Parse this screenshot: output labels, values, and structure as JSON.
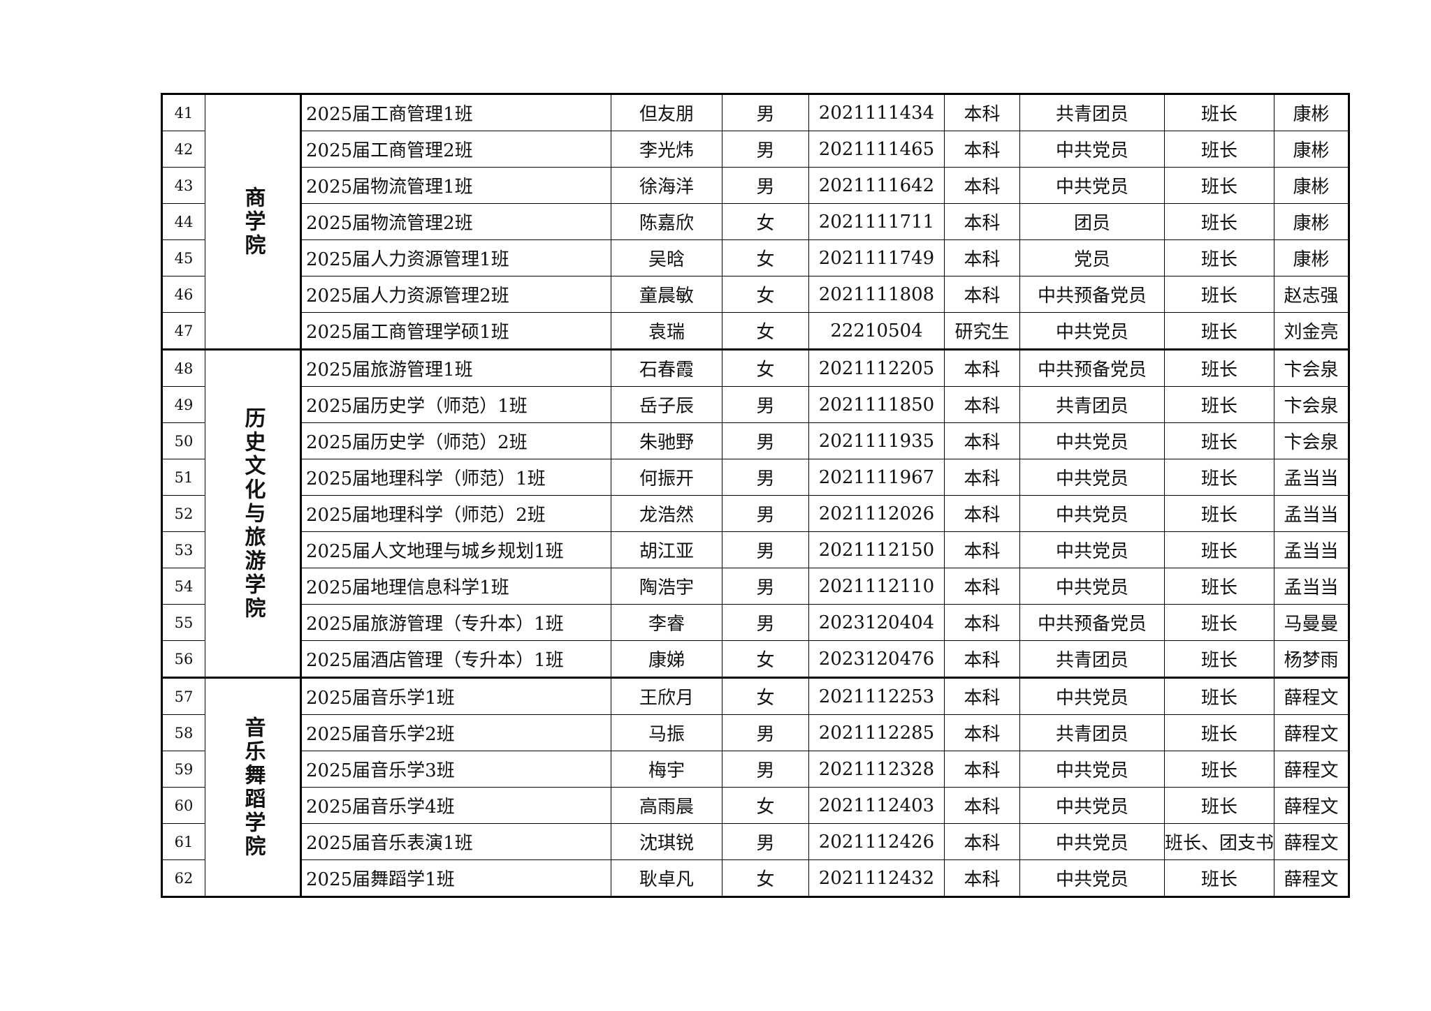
{
  "groups": [
    {
      "college": "商学院",
      "rows": [
        [
          "41",
          "2025届工商管理1班",
          "但友朋",
          "男",
          "2021111434",
          "本科",
          "共青团员",
          "班长",
          "康彬"
        ],
        [
          "42",
          "2025届工商管理2班",
          "李光炜",
          "男",
          "2021111465",
          "本科",
          "中共党员",
          "班长",
          "康彬"
        ],
        [
          "43",
          "2025届物流管理1班",
          "徐海洋",
          "男",
          "2021111642",
          "本科",
          "中共党员",
          "班长",
          "康彬"
        ],
        [
          "44",
          "2025届物流管理2班",
          "陈嘉欣",
          "女",
          "2021111711",
          "本科",
          "团员",
          "班长",
          "康彬"
        ],
        [
          "45",
          "2025届人力资源管理1班",
          "吴晗",
          "女",
          "2021111749",
          "本科",
          "党员",
          "班长",
          "康彬"
        ],
        [
          "46",
          "2025届人力资源管理2班",
          "童晨敏",
          "女",
          "2021111808",
          "本科",
          "中共预备党员",
          "班长",
          "赵志强"
        ],
        [
          "47",
          "2025届工商管理学硕1班",
          "袁瑞",
          "女",
          "22210504",
          "研究生",
          "中共党员",
          "班长",
          "刘金亮"
        ]
      ]
    },
    {
      "college": "历史文化与旅游学院",
      "rows": [
        [
          "48",
          "2025届旅游管理1班",
          "石春霞",
          "女",
          "2021112205",
          "本科",
          "中共预备党员",
          "班长",
          "卞会泉"
        ],
        [
          "49",
          "2025届历史学（师范）1班",
          "岳子辰",
          "男",
          "2021111850",
          "本科",
          "共青团员",
          "班长",
          "卞会泉"
        ],
        [
          "50",
          "2025届历史学（师范）2班",
          "朱驰野",
          "男",
          "2021111935",
          "本科",
          "中共党员",
          "班长",
          "卞会泉"
        ],
        [
          "51",
          "2025届地理科学（师范）1班",
          "何振开",
          "男",
          "2021111967",
          "本科",
          "中共党员",
          "班长",
          "孟当当"
        ],
        [
          "52",
          "2025届地理科学（师范）2班",
          "龙浩然",
          "男",
          "2021112026",
          "本科",
          "中共党员",
          "班长",
          "孟当当"
        ],
        [
          "53",
          "2025届人文地理与城乡规划1班",
          "胡江亚",
          "男",
          "2021112150",
          "本科",
          "中共党员",
          "班长",
          "孟当当"
        ],
        [
          "54",
          "2025届地理信息科学1班",
          "陶浩宇",
          "男",
          "2021112110",
          "本科",
          "中共党员",
          "班长",
          "孟当当"
        ],
        [
          "55",
          "2025届旅游管理（专升本）1班",
          "李睿",
          "男",
          "2023120404",
          "本科",
          "中共预备党员",
          "班长",
          "马曼曼"
        ],
        [
          "56",
          "2025届酒店管理（专升本）1班",
          "康娣",
          "女",
          "2023120476",
          "本科",
          "共青团员",
          "班长",
          "杨梦雨"
        ]
      ]
    },
    {
      "college": "音乐舞蹈学院",
      "rows": [
        [
          "57",
          "2025届音乐学1班",
          "王欣月",
          "女",
          "2021112253",
          "本科",
          "中共党员",
          "班长",
          "薛程文"
        ],
        [
          "58",
          "2025届音乐学2班",
          "马振",
          "男",
          "2021112285",
          "本科",
          "共青团员",
          "班长",
          "薛程文"
        ],
        [
          "59",
          "2025届音乐学3班",
          "梅宇",
          "男",
          "2021112328",
          "本科",
          "中共党员",
          "班长",
          "薛程文"
        ],
        [
          "60",
          "2025届音乐学4班",
          "高雨晨",
          "女",
          "2021112403",
          "本科",
          "中共党员",
          "班长",
          "薛程文"
        ],
        [
          "61",
          "2025届音乐表演1班",
          "沈琪锐",
          "男",
          "2021112426",
          "本科",
          "中共党员",
          "班长、团支书",
          "薛程文"
        ],
        [
          "62",
          "2025届舞蹈学1班",
          "耿卓凡",
          "女",
          "2021112432",
          "本科",
          "中共党员",
          "班长",
          "薛程文"
        ]
      ]
    }
  ]
}
